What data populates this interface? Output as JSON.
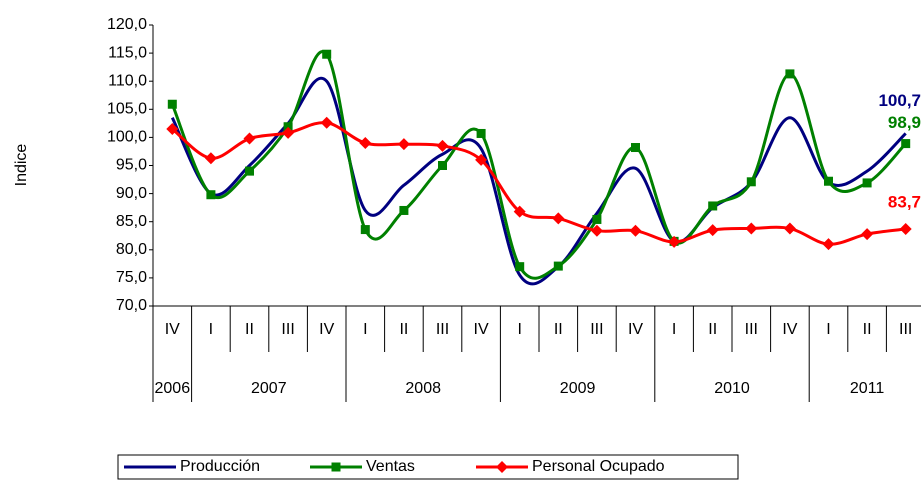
{
  "chart_data": {
    "type": "line",
    "y_label": "Indice",
    "categories": [
      "IV",
      "I",
      "II",
      "III",
      "IV",
      "I",
      "II",
      "III",
      "IV",
      "I",
      "II",
      "III",
      "IV",
      "I",
      "II",
      "III",
      "IV",
      "I",
      "II",
      "III"
    ],
    "years": [
      {
        "label": "2006",
        "span": 1
      },
      {
        "label": "2007",
        "span": 4
      },
      {
        "label": "2008",
        "span": 4
      },
      {
        "label": "2009",
        "span": 4
      },
      {
        "label": "2010",
        "span": 4
      },
      {
        "label": "2011",
        "span": 3
      }
    ],
    "ylim": [
      70,
      120
    ],
    "yticks": [
      {
        "value": 70,
        "label": "70,0"
      },
      {
        "value": 75,
        "label": "75,0"
      },
      {
        "value": 80,
        "label": "80,0"
      },
      {
        "value": 85,
        "label": "85,0"
      },
      {
        "value": 90,
        "label": "90,0"
      },
      {
        "value": 95,
        "label": "95,0"
      },
      {
        "value": 100,
        "label": "100,0"
      },
      {
        "value": 105,
        "label": "105,0"
      },
      {
        "value": 110,
        "label": "110,0"
      },
      {
        "value": 115,
        "label": "115,0"
      },
      {
        "value": 120,
        "label": "120,0"
      }
    ],
    "legend": "bottom-left",
    "series": [
      {
        "name": "Producción",
        "color": "#000080",
        "marker": "none",
        "values": [
          103.5,
          90.0,
          95.0,
          102.5,
          110.0,
          87.0,
          91.5,
          97.0,
          98.0,
          75.5,
          77.0,
          86.5,
          94.5,
          81.5,
          87.5,
          92.0,
          103.5,
          92.0,
          94.0,
          100.7
        ],
        "value_labels": [
          null,
          null,
          null,
          null,
          null,
          null,
          null,
          null,
          null,
          null,
          null,
          null,
          null,
          null,
          null,
          null,
          null,
          null,
          null,
          "100,7"
        ]
      },
      {
        "name": "Ventas",
        "color": "#008000",
        "marker": "square",
        "values": [
          105.9,
          89.8,
          94.0,
          101.9,
          114.8,
          83.6,
          87.0,
          95.0,
          100.7,
          77.0,
          77.1,
          85.4,
          98.2,
          81.5,
          87.8,
          92.1,
          111.3,
          92.2,
          91.9,
          98.9
        ],
        "value_labels": [
          null,
          null,
          null,
          null,
          null,
          null,
          null,
          null,
          null,
          null,
          null,
          null,
          null,
          null,
          null,
          null,
          null,
          null,
          null,
          "98,9"
        ]
      },
      {
        "name": "Personal Ocupado",
        "color": "#ff0000",
        "marker": "diamond",
        "values": [
          101.5,
          96.3,
          99.8,
          100.8,
          102.6,
          99.0,
          98.8,
          98.5,
          96.0,
          86.8,
          85.6,
          83.4,
          83.4,
          81.4,
          83.5,
          83.8,
          83.8,
          81.0,
          82.8,
          83.7
        ],
        "value_labels": [
          null,
          null,
          null,
          null,
          null,
          null,
          null,
          null,
          null,
          null,
          null,
          null,
          null,
          null,
          null,
          null,
          null,
          null,
          null,
          "83,7"
        ]
      }
    ]
  }
}
